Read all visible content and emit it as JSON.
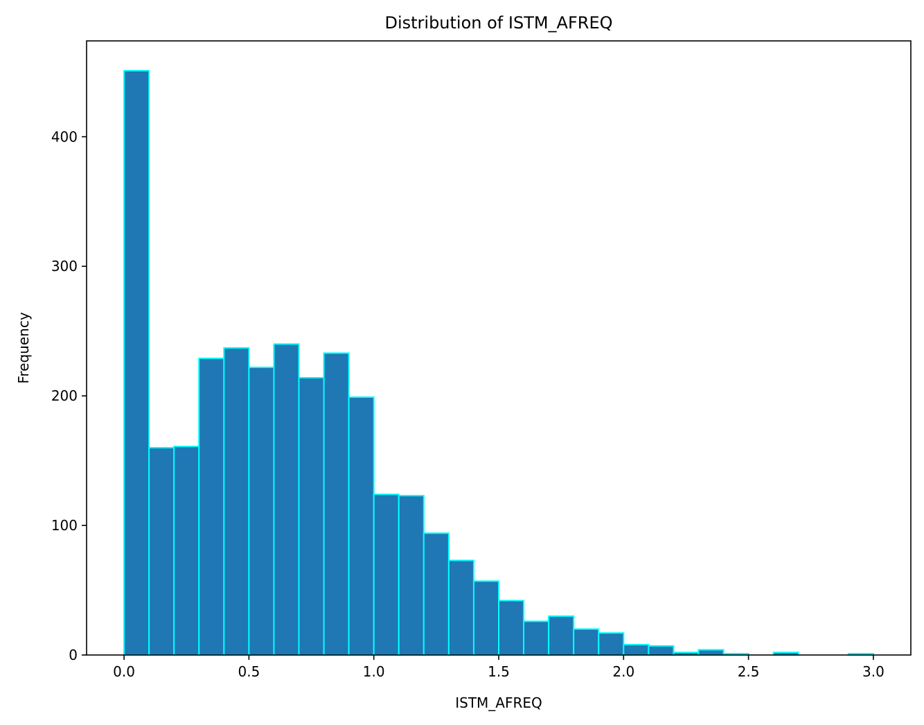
{
  "chart_data": {
    "type": "bar",
    "title": "Distribution of ISTM_AFREQ",
    "xlabel": "ISTM_AFREQ",
    "ylabel": "Frequency",
    "xlim": [
      -0.15,
      3.15
    ],
    "ylim": [
      0,
      474
    ],
    "x_ticks": [
      0.0,
      0.5,
      1.0,
      1.5,
      2.0,
      2.5,
      3.0
    ],
    "x_tick_labels": [
      "0.0",
      "0.5",
      "1.0",
      "1.5",
      "2.0",
      "2.5",
      "3.0"
    ],
    "y_ticks": [
      0,
      100,
      200,
      300,
      400
    ],
    "y_tick_labels": [
      "0",
      "100",
      "200",
      "300",
      "400"
    ],
    "bin_edges": [
      0.0,
      0.1,
      0.2,
      0.3,
      0.4,
      0.5,
      0.6,
      0.7,
      0.8,
      0.9,
      1.0,
      1.1,
      1.2,
      1.3,
      1.4,
      1.5,
      1.6,
      1.7,
      1.8,
      1.9,
      2.0,
      2.1,
      2.2,
      2.3,
      2.4,
      2.5,
      2.6,
      2.7,
      2.8,
      2.9,
      3.0
    ],
    "values": [
      451,
      160,
      161,
      229,
      237,
      222,
      240,
      214,
      233,
      199,
      124,
      123,
      94,
      73,
      57,
      42,
      26,
      30,
      20,
      17,
      8,
      7,
      2,
      4,
      1,
      0,
      2,
      0,
      0,
      1
    ],
    "bar_color": "#1f77b4",
    "edge_color": "#00ffff",
    "grid": false,
    "legend": "none"
  }
}
